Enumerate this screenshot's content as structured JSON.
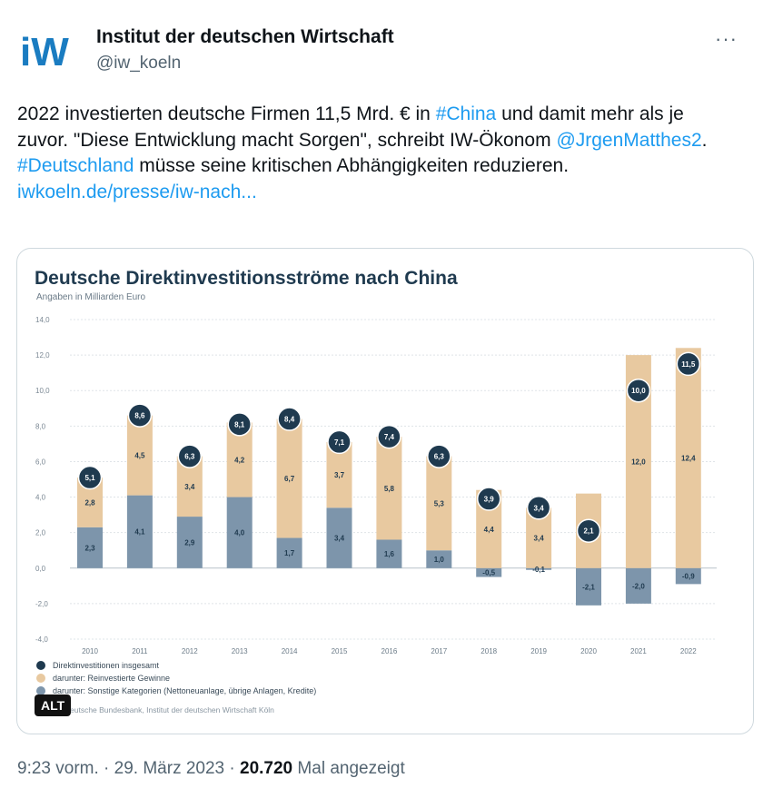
{
  "author": {
    "logo_text": "iW",
    "name": "Institut der deutschen Wirtschaft",
    "handle": "@iw_koeln"
  },
  "menu": {
    "more_label": "···"
  },
  "tweet": {
    "text_1": "2022 investierten deutsche Firmen 11,5 Mrd. € in ",
    "hashtag_china": "#China",
    "text_2": " und damit mehr als je zuvor. \"Diese Entwicklung macht Sorgen\", schreibt IW-Ökonom ",
    "mention": "@JrgenMatthes2",
    "text_3": ". ",
    "hashtag_de": "#Deutschland",
    "text_4": " müsse seine kritischen Abhängigkeiten reduzieren.",
    "link": "iwkoeln.de/presse/iw-nach..."
  },
  "media": {
    "alt_badge": "ALT",
    "source": "eutsche Bundesbank, Institut der deutschen Wirtschaft Köln"
  },
  "meta": {
    "time": "9:23 vorm.",
    "date": "29. März 2023",
    "views": "20.720",
    "views_label": "Mal angezeigt"
  },
  "colors": {
    "accent": "#1d9bf0",
    "navy": "#1f3a4f",
    "reinvest": "#e8c9a0",
    "other": "#7d95ab"
  },
  "chart_data": {
    "type": "bar",
    "title": "Deutsche Direktinvestitionsströme nach China",
    "subtitle": "Angaben in Milliarden Euro",
    "categories": [
      "2010",
      "2011",
      "2012",
      "2013",
      "2014",
      "2015",
      "2016",
      "2017",
      "2018",
      "2019",
      "2020",
      "2021",
      "2022"
    ],
    "ylim": [
      -4.0,
      14.0
    ],
    "yticks": [
      "-4,0",
      "-2,0",
      "0,0",
      "2,0",
      "4,0",
      "6,0",
      "8,0",
      "10,0",
      "12,0",
      "14,0"
    ],
    "series": [
      {
        "name": "Direktinvestitionen insgesamt",
        "values": [
          5.1,
          8.6,
          6.3,
          8.1,
          8.4,
          7.1,
          7.4,
          6.3,
          3.9,
          3.4,
          2.1,
          10.0,
          11.5
        ],
        "labels": [
          "5,1",
          "8,6",
          "6,3",
          "8,1",
          "8,4",
          "7,1",
          "7,4",
          "6,3",
          "3,9",
          "3,4",
          "2,1",
          "10,0",
          "11,5"
        ]
      },
      {
        "name": "darunter: Reinvestierte Gewinne",
        "values": [
          2.8,
          4.5,
          3.4,
          4.2,
          6.7,
          3.7,
          5.8,
          5.3,
          4.4,
          3.4,
          4.2,
          12.0,
          12.4
        ],
        "labels": [
          "2,8",
          "4,5",
          "3,4",
          "4,2",
          "6,7",
          "3,7",
          "5,8",
          "5,3",
          "4,4",
          "3,4",
          "4,2",
          "12,0",
          "12,4"
        ]
      },
      {
        "name": "darunter: Sonstige Kategorien (Nettoneuanlage, übrige Anlagen, Kredite)",
        "values": [
          2.3,
          4.1,
          2.9,
          4.0,
          1.7,
          3.4,
          1.6,
          1.0,
          -0.5,
          -0.1,
          -2.1,
          -2.0,
          -0.9
        ],
        "labels": [
          "2,3",
          "4,1",
          "2,9",
          "4,0",
          "1,7",
          "3,4",
          "1,6",
          "1,0",
          "-0,5",
          "-0,1",
          "-2,1",
          "-2,0",
          "-0,9"
        ]
      }
    ],
    "grid": true,
    "legend": "bottom-left"
  }
}
